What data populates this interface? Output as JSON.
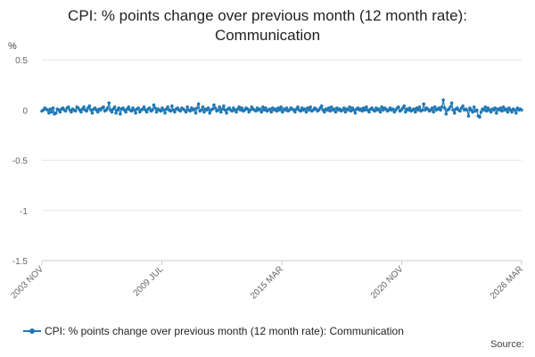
{
  "title": {
    "line1": "CPI: % points change over previous month (12 month rate):",
    "line2": "Communication"
  },
  "unit": "%",
  "source_label": "Source:",
  "colors": {
    "series": "#1f78b4",
    "grid": "#e6e6e6",
    "axis": "#cccccc"
  },
  "chart_data": {
    "type": "scatter",
    "title": "CPI: % points change over previous month (12 month rate): Communication",
    "ylabel": "%",
    "xlabel": "",
    "ylim": [
      -1.5,
      0.5
    ],
    "yticks": [
      0.5,
      0,
      -0.5,
      -1,
      -1.5
    ],
    "ytick_labels": [
      "0.5",
      "0",
      "-0.5",
      "-1",
      "-1.5"
    ],
    "x_start": "2003 NOV",
    "x_end": "2026 MAR",
    "xticks": [
      "2003 NOV",
      "2009 JUL",
      "2015 MAR",
      "2020 NOV",
      "2026 MAR"
    ],
    "grid": true,
    "legend_position": "bottom",
    "series": [
      {
        "name": "CPI: % points change over previous month (12 month rate): Communication",
        "marker": "circle",
        "line": true,
        "values": [
          -0.01,
          0.0,
          0.02,
          0.01,
          0.0,
          -0.03,
          0.01,
          -0.02,
          0.02,
          -0.04,
          -0.03,
          0.01,
          0.0,
          -0.02,
          0.01,
          0.02,
          0.0,
          -0.01,
          0.02,
          0.03,
          0.0,
          -0.02,
          0.01,
          0.0,
          -0.01,
          0.03,
          0.02,
          0.0,
          -0.02,
          0.01,
          0.03,
          0.0,
          -0.01,
          0.02,
          0.04,
          0.0,
          -0.03,
          0.01,
          0.02,
          0.0,
          -0.02,
          0.01,
          0.0,
          0.02,
          0.03,
          -0.01,
          0.0,
          0.02,
          0.07,
          0.0,
          -0.02,
          0.01,
          0.03,
          -0.03,
          0.0,
          0.02,
          -0.04,
          0.01,
          0.02,
          0.0,
          -0.02,
          0.01,
          0.03,
          0.0,
          -0.01,
          0.02,
          0.0,
          -0.03,
          0.01,
          0.02,
          -0.02,
          0.0,
          0.01,
          0.03,
          0.0,
          -0.02,
          0.01,
          0.02,
          -0.01,
          0.0,
          0.05,
          0.02,
          -0.02,
          0.01,
          0.0,
          -0.01,
          0.02,
          0.0,
          -0.03,
          0.01,
          0.03,
          0.0,
          -0.01,
          0.04,
          0.0,
          -0.02,
          0.01,
          0.02,
          0.0,
          -0.01,
          0.02,
          0.01,
          0.0,
          -0.02,
          0.03,
          0.0,
          -0.01,
          0.02,
          0.0,
          0.01,
          -0.03,
          0.02,
          0.06,
          -0.01,
          0.0,
          0.03,
          -0.02,
          0.01,
          0.0,
          0.02,
          -0.03,
          0.0,
          0.01,
          0.05,
          0.02,
          -0.01,
          0.0,
          0.03,
          -0.02,
          0.01,
          0.04,
          0.0,
          -0.03,
          0.01,
          0.02,
          0.0,
          -0.01,
          0.02,
          0.0,
          -0.02,
          0.01,
          0.03,
          0.0,
          0.02,
          -0.01,
          0.0,
          0.02,
          0.01,
          -0.02,
          0.0,
          0.03,
          0.01,
          0.0,
          -0.01,
          0.02,
          0.0,
          0.01,
          -0.02,
          0.03,
          0.0,
          0.02,
          -0.01,
          0.0,
          0.01,
          -0.02,
          0.02,
          0.0,
          0.01,
          -0.01,
          0.02,
          0.0,
          0.03,
          -0.02,
          0.01,
          0.0,
          0.02,
          -0.01,
          0.0,
          0.02,
          0.01,
          0.0,
          -0.02,
          0.01,
          0.03,
          0.0,
          -0.01,
          0.02,
          0.0,
          0.01,
          -0.02,
          0.02,
          0.0,
          0.03,
          -0.01,
          0.0,
          0.02,
          0.01,
          -0.01,
          0.0,
          0.02,
          0.04,
          0.0,
          -0.02,
          0.01,
          0.0,
          0.02,
          -0.01,
          0.03,
          0.0,
          0.01,
          -0.02,
          0.02,
          0.0,
          0.01,
          -0.01,
          0.0,
          0.02,
          -0.02,
          0.01,
          0.0,
          0.03,
          -0.01,
          0.02,
          0.0,
          -0.03,
          0.01,
          0.02,
          0.0,
          0.01,
          -0.01,
          0.02,
          0.0,
          0.03,
          0.0,
          -0.02,
          0.01,
          0.02,
          0.0,
          -0.01,
          0.02,
          0.0,
          0.01,
          -0.02,
          0.03,
          0.0,
          0.02,
          0.01,
          -0.01,
          0.0,
          0.02,
          0.0,
          0.01,
          -0.02,
          0.0,
          0.02,
          0.03,
          -0.01,
          0.0,
          0.02,
          0.04,
          -0.02,
          0.01,
          0.0,
          0.02,
          -0.01,
          0.0,
          0.01,
          -0.02,
          0.02,
          0.0,
          0.03,
          -0.01,
          0.0,
          0.06,
          0.0,
          0.02,
          0.01,
          -0.01,
          0.0,
          0.02,
          -0.02,
          0.03,
          0.0,
          0.01,
          0.02,
          0.0,
          0.03,
          0.1,
          0.02,
          -0.04,
          0.0,
          0.01,
          0.03,
          0.07,
          0.0,
          -0.03,
          0.01,
          0.02,
          0.0,
          -0.01,
          0.02,
          0.04,
          0.0,
          0.01,
          0.0,
          -0.06,
          0.02,
          0.0,
          -0.02,
          0.03,
          -0.01,
          0.0,
          -0.06,
          -0.07,
          -0.02,
          0.01,
          0.0,
          0.03,
          -0.01,
          0.02,
          0.0,
          -0.02,
          0.01,
          0.0,
          0.02,
          -0.03,
          0.01,
          0.0,
          0.02,
          -0.01,
          0.03,
          0.0,
          0.01,
          -0.02,
          0.02,
          0.0,
          -0.02,
          0.01,
          0.0,
          -0.03,
          0.02,
          0.0,
          0.01,
          0.0
        ]
      }
    ]
  }
}
